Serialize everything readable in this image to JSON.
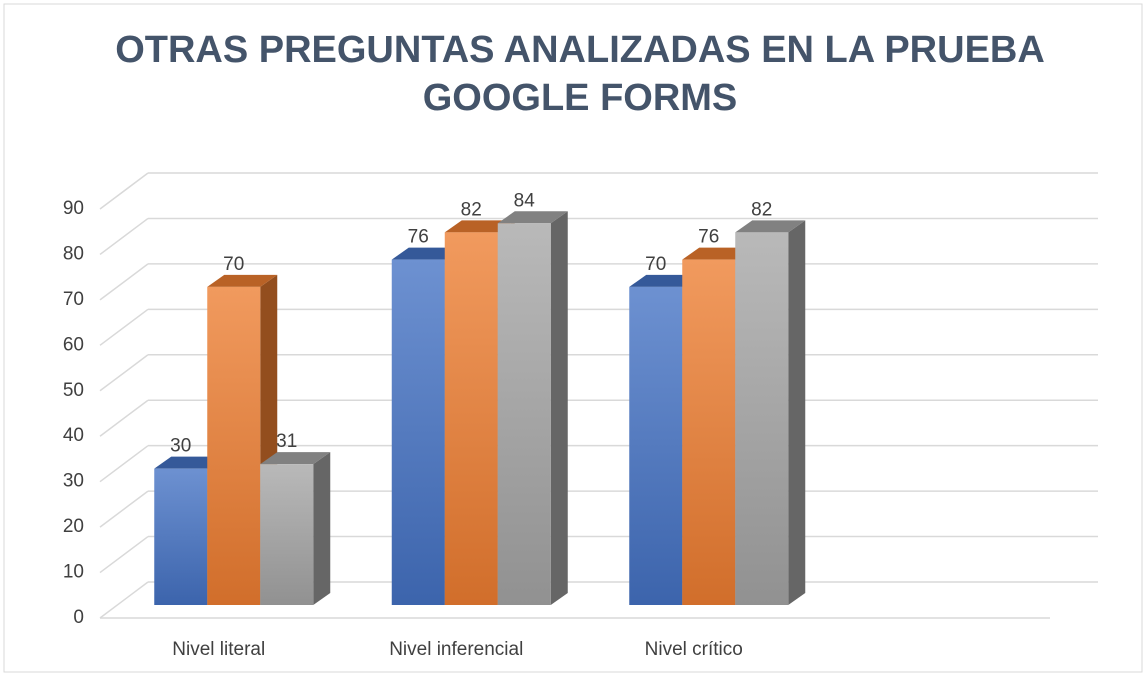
{
  "chart_data": {
    "type": "bar3d",
    "title": [
      "OTRAS PREGUNTAS ANALIZADAS EN LA PRUEBA",
      "GOOGLE FORMS"
    ],
    "categories": [
      "Nivel literal",
      "Nivel inferencial",
      "Nivel crítico",
      null
    ],
    "series": [
      {
        "color": "#4472c4",
        "values": [
          30,
          76,
          70,
          null
        ]
      },
      {
        "color": "#ed7d31",
        "values": [
          70,
          82,
          76,
          null
        ]
      },
      {
        "color": "#a5a5a5",
        "values": [
          31,
          84,
          82,
          null
        ]
      }
    ],
    "ylim": [
      0,
      90
    ],
    "yticks": [
      0,
      10,
      20,
      30,
      40,
      50,
      60,
      70,
      80,
      90
    ],
    "grid": true,
    "data_labels": true
  }
}
